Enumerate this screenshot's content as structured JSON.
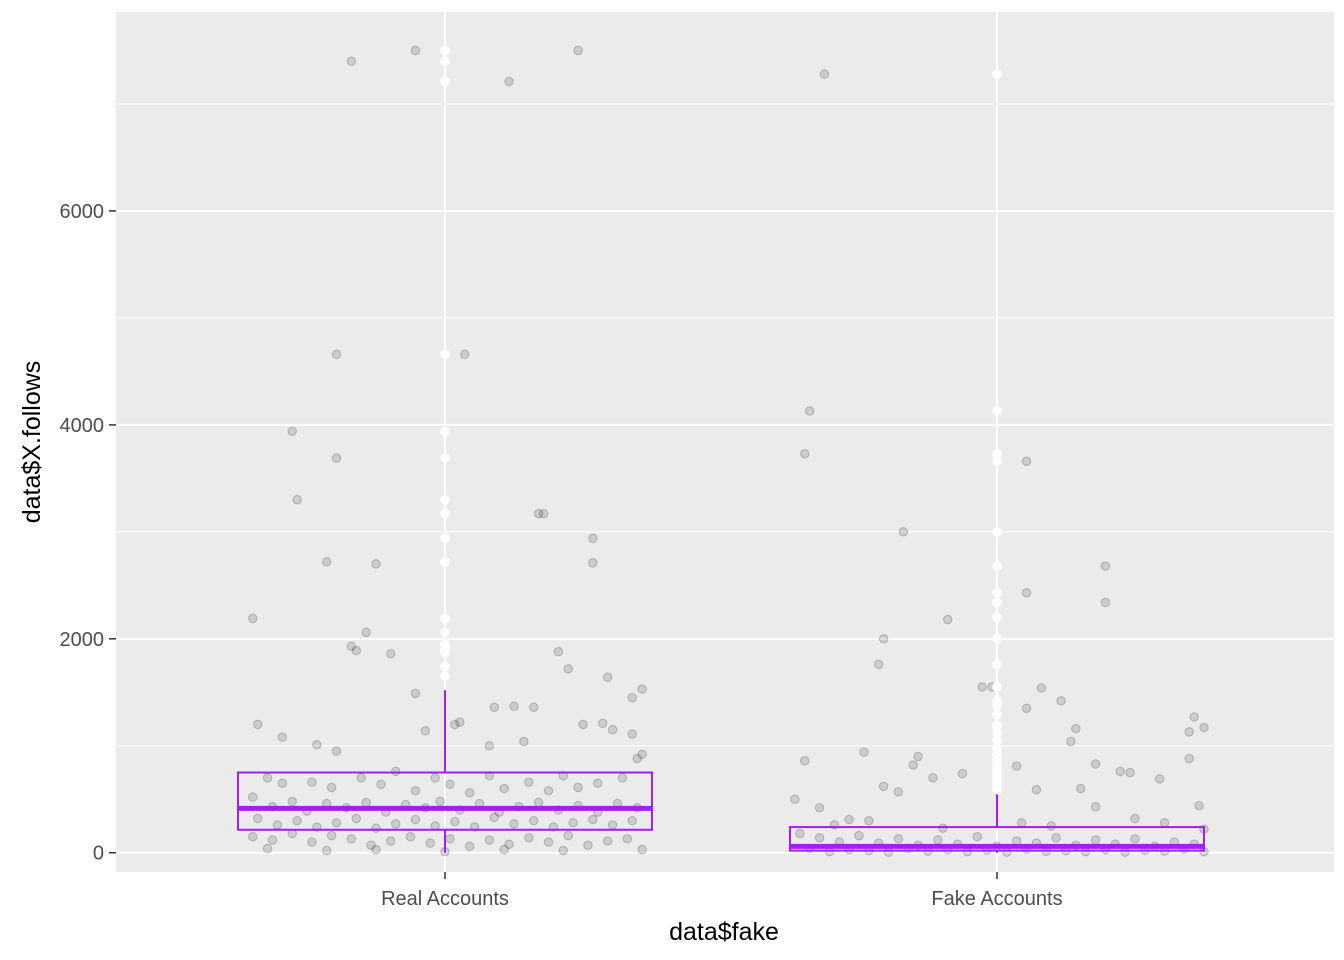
{
  "chart_data": {
    "type": "boxplot",
    "xlabel": "data$fake",
    "ylabel": "data$X.follows",
    "categories": [
      "Real Accounts",
      "Fake Accounts"
    ],
    "ylim": [
      -180,
      7860
    ],
    "yticks": [
      0,
      2000,
      4000,
      6000
    ],
    "grid": true,
    "colors": {
      "panel": "#ebebeb",
      "grid": "#ffffff",
      "box": "#a020f0",
      "jitter": "#000000",
      "outlier": "#ffffff"
    },
    "series": [
      {
        "category": "Real Accounts",
        "box": {
          "q1": 215,
          "median": 415,
          "q3": 750,
          "lower_whisker": 0,
          "upper_whisker": 1520
        },
        "outliers": [
          7500,
          7400,
          7210,
          4660,
          3940,
          3690,
          3300,
          3170,
          2940,
          2720,
          2190,
          2060,
          1950,
          1900,
          1870,
          1740,
          1650
        ],
        "jitter_points": [
          [
            -0.19,
            7400
          ],
          [
            -0.06,
            7500
          ],
          [
            0.13,
            7210
          ],
          [
            0.27,
            7500
          ],
          [
            -0.22,
            4660
          ],
          [
            0.04,
            4660
          ],
          [
            -0.31,
            3940
          ],
          [
            -0.22,
            3690
          ],
          [
            -0.3,
            3300
          ],
          [
            0.2,
            3170
          ],
          [
            0.3,
            2940
          ],
          [
            -0.24,
            2720
          ],
          [
            -0.14,
            2700
          ],
          [
            0.3,
            2710
          ],
          [
            -0.39,
            2190
          ],
          [
            -0.16,
            2060
          ],
          [
            -0.19,
            1930
          ],
          [
            -0.18,
            1890
          ],
          [
            -0.11,
            1860
          ],
          [
            0.23,
            1880
          ],
          [
            0.25,
            1720
          ],
          [
            0.33,
            1640
          ],
          [
            -0.06,
            1490
          ],
          [
            0.38,
            1450
          ],
          [
            0.4,
            1530
          ],
          [
            -0.04,
            1140
          ],
          [
            0.02,
            1200
          ],
          [
            0.03,
            1220
          ],
          [
            0.1,
            1360
          ],
          [
            0.14,
            1370
          ],
          [
            0.18,
            1360
          ],
          [
            0.19,
            3170
          ],
          [
            -0.38,
            1200
          ],
          [
            -0.33,
            1080
          ],
          [
            -0.26,
            1010
          ],
          [
            -0.22,
            950
          ],
          [
            0.09,
            1000
          ],
          [
            0.16,
            1040
          ],
          [
            0.28,
            1200
          ],
          [
            0.32,
            1210
          ],
          [
            0.34,
            1150
          ],
          [
            0.38,
            1110
          ],
          [
            0.4,
            920
          ],
          [
            -0.36,
            700
          ],
          [
            -0.33,
            650
          ],
          [
            -0.27,
            660
          ],
          [
            -0.23,
            610
          ],
          [
            -0.17,
            700
          ],
          [
            -0.13,
            640
          ],
          [
            -0.1,
            760
          ],
          [
            -0.06,
            580
          ],
          [
            -0.02,
            700
          ],
          [
            0.01,
            640
          ],
          [
            0.05,
            560
          ],
          [
            0.09,
            720
          ],
          [
            0.12,
            600
          ],
          [
            0.17,
            660
          ],
          [
            0.21,
            580
          ],
          [
            0.24,
            720
          ],
          [
            0.27,
            610
          ],
          [
            0.31,
            650
          ],
          [
            0.36,
            700
          ],
          [
            -0.39,
            520
          ],
          [
            -0.35,
            430
          ],
          [
            -0.31,
            480
          ],
          [
            -0.28,
            390
          ],
          [
            -0.24,
            460
          ],
          [
            -0.2,
            420
          ],
          [
            -0.16,
            470
          ],
          [
            -0.12,
            380
          ],
          [
            -0.08,
            450
          ],
          [
            -0.04,
            420
          ],
          [
            -0.01,
            480
          ],
          [
            0.03,
            400
          ],
          [
            0.07,
            460
          ],
          [
            0.11,
            380
          ],
          [
            0.15,
            430
          ],
          [
            0.19,
            470
          ],
          [
            0.23,
            400
          ],
          [
            0.27,
            440
          ],
          [
            0.31,
            380
          ],
          [
            0.35,
            460
          ],
          [
            0.39,
            420
          ],
          [
            -0.38,
            320
          ],
          [
            -0.34,
            260
          ],
          [
            -0.3,
            300
          ],
          [
            -0.26,
            240
          ],
          [
            -0.22,
            280
          ],
          [
            -0.18,
            320
          ],
          [
            -0.14,
            230
          ],
          [
            -0.1,
            270
          ],
          [
            -0.06,
            310
          ],
          [
            -0.02,
            250
          ],
          [
            0.02,
            290
          ],
          [
            0.06,
            240
          ],
          [
            0.1,
            330
          ],
          [
            0.14,
            270
          ],
          [
            0.18,
            300
          ],
          [
            0.22,
            240
          ],
          [
            0.26,
            280
          ],
          [
            0.3,
            310
          ],
          [
            0.34,
            260
          ],
          [
            0.38,
            300
          ],
          [
            -0.39,
            150
          ],
          [
            -0.35,
            120
          ],
          [
            -0.31,
            180
          ],
          [
            -0.27,
            100
          ],
          [
            -0.23,
            160
          ],
          [
            -0.19,
            130
          ],
          [
            -0.15,
            70
          ],
          [
            -0.11,
            110
          ],
          [
            -0.07,
            150
          ],
          [
            -0.03,
            90
          ],
          [
            0.01,
            130
          ],
          [
            0.05,
            60
          ],
          [
            0.09,
            120
          ],
          [
            0.13,
            80
          ],
          [
            0.17,
            140
          ],
          [
            0.21,
            100
          ],
          [
            0.25,
            160
          ],
          [
            0.29,
            70
          ],
          [
            0.33,
            110
          ],
          [
            0.37,
            130
          ],
          [
            -0.36,
            40
          ],
          [
            -0.24,
            20
          ],
          [
            -0.14,
            30
          ],
          [
            0.0,
            10
          ],
          [
            0.12,
            30
          ],
          [
            0.24,
            20
          ],
          [
            0.4,
            30
          ],
          [
            0.39,
            880
          ]
        ]
      },
      {
        "category": "Fake Accounts",
        "box": {
          "q1": 20,
          "median": 60,
          "q3": 240,
          "lower_whisker": 0,
          "upper_whisker": 550
        },
        "outliers": [
          7280,
          4130,
          3730,
          3660,
          3000,
          2680,
          2430,
          2340,
          2200,
          2000,
          1760,
          1550,
          1420,
          1370,
          1290,
          1190,
          1120,
          1050,
          980,
          920,
          870,
          820,
          780,
          740,
          700,
          660,
          620,
          590
        ],
        "jitter_points": [
          [
            -0.35,
            7280
          ],
          [
            -0.38,
            4130
          ],
          [
            -0.39,
            3730
          ],
          [
            0.06,
            3660
          ],
          [
            -0.19,
            3000
          ],
          [
            0.22,
            2680
          ],
          [
            0.06,
            2430
          ],
          [
            0.22,
            2340
          ],
          [
            -0.1,
            2180
          ],
          [
            -0.23,
            2000
          ],
          [
            -0.24,
            1760
          ],
          [
            -0.03,
            1550
          ],
          [
            0.09,
            1540
          ],
          [
            0.13,
            1420
          ],
          [
            0.06,
            1350
          ],
          [
            0.4,
            1270
          ],
          [
            0.42,
            1170
          ],
          [
            0.39,
            1130
          ],
          [
            0.16,
            1160
          ],
          [
            0.15,
            1040
          ],
          [
            -0.39,
            860
          ],
          [
            -0.27,
            940
          ],
          [
            -0.16,
            900
          ],
          [
            -0.17,
            820
          ],
          [
            0.04,
            810
          ],
          [
            0.2,
            830
          ],
          [
            0.25,
            760
          ],
          [
            0.27,
            750
          ],
          [
            0.33,
            690
          ],
          [
            0.39,
            880
          ],
          [
            -0.41,
            500
          ],
          [
            -0.36,
            420
          ],
          [
            -0.3,
            310
          ],
          [
            -0.23,
            620
          ],
          [
            -0.2,
            570
          ],
          [
            -0.13,
            700
          ],
          [
            -0.07,
            740
          ],
          [
            -0.01,
            1550
          ],
          [
            0.08,
            590
          ],
          [
            0.17,
            600
          ],
          [
            -0.4,
            180
          ],
          [
            -0.36,
            140
          ],
          [
            -0.32,
            100
          ],
          [
            -0.28,
            160
          ],
          [
            -0.24,
            90
          ],
          [
            -0.2,
            130
          ],
          [
            -0.16,
            70
          ],
          [
            -0.12,
            120
          ],
          [
            -0.08,
            80
          ],
          [
            -0.04,
            150
          ],
          [
            0.0,
            60
          ],
          [
            0.04,
            110
          ],
          [
            0.08,
            90
          ],
          [
            0.12,
            140
          ],
          [
            0.16,
            70
          ],
          [
            0.2,
            120
          ],
          [
            0.24,
            80
          ],
          [
            0.28,
            130
          ],
          [
            0.32,
            60
          ],
          [
            0.36,
            100
          ],
          [
            0.4,
            80
          ],
          [
            -0.38,
            40
          ],
          [
            -0.34,
            10
          ],
          [
            -0.3,
            30
          ],
          [
            -0.26,
            20
          ],
          [
            -0.22,
            5
          ],
          [
            -0.18,
            40
          ],
          [
            -0.14,
            15
          ],
          [
            -0.1,
            30
          ],
          [
            -0.06,
            10
          ],
          [
            -0.02,
            25
          ],
          [
            0.02,
            5
          ],
          [
            0.06,
            35
          ],
          [
            0.1,
            15
          ],
          [
            0.14,
            20
          ],
          [
            0.18,
            10
          ],
          [
            0.22,
            30
          ],
          [
            0.26,
            5
          ],
          [
            0.3,
            25
          ],
          [
            0.34,
            15
          ],
          [
            0.38,
            35
          ],
          [
            0.42,
            10
          ],
          [
            -0.33,
            260
          ],
          [
            -0.26,
            300
          ],
          [
            -0.11,
            230
          ],
          [
            0.05,
            280
          ],
          [
            0.11,
            250
          ],
          [
            0.28,
            320
          ],
          [
            0.34,
            280
          ],
          [
            0.41,
            440
          ],
          [
            0.42,
            220
          ],
          [
            0.2,
            430
          ]
        ]
      }
    ]
  }
}
